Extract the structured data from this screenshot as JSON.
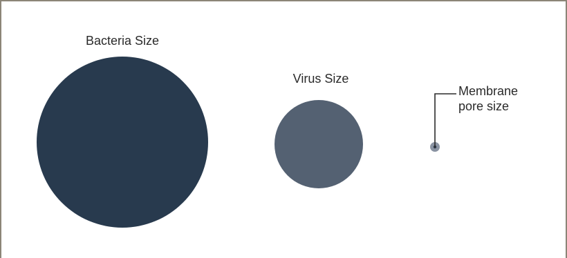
{
  "diagram": {
    "labels": {
      "bacteria": "Bacteria Size",
      "virus": "Virus Size",
      "pore_line1": "Membrane",
      "pore_line2": "pore size"
    },
    "colors": {
      "frame": "#8c8577",
      "bacteria": "#283a4e",
      "virus": "#546172",
      "pore": "#8a93a2",
      "pore_center": "#2a3444",
      "leader": "#2a2a2a"
    }
  }
}
